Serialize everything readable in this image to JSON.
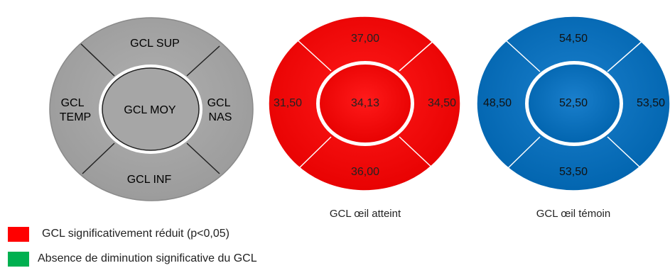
{
  "legend_items": [
    {
      "label": "GCL significativement réduit (p<0,05)",
      "color": "#ff0000"
    },
    {
      "label": "Absence de diminution significative du GCL",
      "color": "#00b050"
    }
  ],
  "diagrams": [
    {
      "caption": "",
      "color": "#a6a6a6",
      "text_color": "#000000",
      "sup": "GCL SUP",
      "temp": "GCL TEMP",
      "center": "GCL MOY",
      "nas": "GCL NAS",
      "inf": "GCL INF"
    },
    {
      "caption": "GCL œil atteint",
      "color": "#ff0000",
      "text_color": "#222222",
      "sup": "37,00",
      "temp": "31,50",
      "center": "34,13",
      "nas": "34,50",
      "inf": "36,00"
    },
    {
      "caption": "GCL œil témoin",
      "color": "#0070c0",
      "text_color": "#111111",
      "sup": "54,50",
      "temp": "48,50",
      "center": "52,50",
      "nas": "53,50",
      "inf": "53,50"
    }
  ]
}
